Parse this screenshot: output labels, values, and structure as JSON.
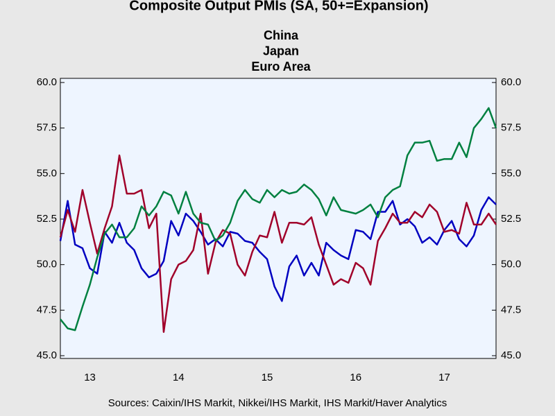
{
  "chart_data": {
    "type": "line",
    "title": "Composite Output PMIs (SA, 50+=Expansion)",
    "source": "Sources:  Caixin/IHS Markit, Nikkei/IHS Markit, IHS Markit/Haver Analytics",
    "x": [
      2013.167,
      2013.25,
      2013.333,
      2013.417,
      2013.5,
      2013.583,
      2013.667,
      2013.75,
      2013.833,
      2013.917,
      2014.0,
      2014.083,
      2014.167,
      2014.25,
      2014.333,
      2014.417,
      2014.5,
      2014.583,
      2014.667,
      2014.75,
      2014.833,
      2014.917,
      2015.0,
      2015.083,
      2015.167,
      2015.25,
      2015.333,
      2015.417,
      2015.5,
      2015.583,
      2015.667,
      2015.75,
      2015.833,
      2015.917,
      2016.0,
      2016.083,
      2016.167,
      2016.25,
      2016.333,
      2016.417,
      2016.5,
      2016.583,
      2016.667,
      2016.75,
      2016.833,
      2016.917,
      2017.0,
      2017.083,
      2017.167,
      2017.25,
      2017.333,
      2017.417,
      2017.5,
      2017.583,
      2017.667,
      2017.75,
      2017.833,
      2017.917,
      2018.0,
      2018.083
    ],
    "xlim": [
      2013.167,
      2018.083
    ],
    "xticks": [
      {
        "value": 2013.5,
        "label": "13"
      },
      {
        "value": 2014.5,
        "label": "14"
      },
      {
        "value": 2015.5,
        "label": "15"
      },
      {
        "value": 2016.5,
        "label": "16"
      },
      {
        "value": 2017.5,
        "label": "17"
      }
    ],
    "ylim": [
      45,
      60
    ],
    "yticks": [
      {
        "value": 45,
        "label": "45.0"
      },
      {
        "value": 47.5,
        "label": "47.5"
      },
      {
        "value": 50,
        "label": "50.0"
      },
      {
        "value": 52.5,
        "label": "52.5"
      },
      {
        "value": 55,
        "label": "55.0"
      },
      {
        "value": 57.5,
        "label": "57.5"
      },
      {
        "value": 60,
        "label": "60.0"
      }
    ],
    "y2lim": [
      45,
      60
    ],
    "y2ticks": [
      {
        "value": 45,
        "label": "45.0"
      },
      {
        "value": 47.5,
        "label": "47.5"
      },
      {
        "value": 50,
        "label": "50.0"
      },
      {
        "value": 52.5,
        "label": "52.5"
      },
      {
        "value": 55,
        "label": "55.0"
      },
      {
        "value": 57.5,
        "label": "57.5"
      },
      {
        "value": 60,
        "label": "60.0"
      }
    ],
    "series": [
      {
        "name": "China",
        "color": "#0000c0",
        "values": [
          51.3,
          53.5,
          51.1,
          50.9,
          49.8,
          49.5,
          51.8,
          51.2,
          52.3,
          51.2,
          50.8,
          49.8,
          49.3,
          49.5,
          50.2,
          52.4,
          51.6,
          52.8,
          52.4,
          51.8,
          51.1,
          51.4,
          51.0,
          51.8,
          51.7,
          51.3,
          51.2,
          50.7,
          50.3,
          48.8,
          48.0,
          49.9,
          50.5,
          49.4,
          50.1,
          49.4,
          51.2,
          50.8,
          50.5,
          50.3,
          51.9,
          51.8,
          51.4,
          52.9,
          52.9,
          53.5,
          52.2,
          52.5,
          52.1,
          51.2,
          51.5,
          51.1,
          51.9,
          52.4,
          51.4,
          51.0,
          51.6,
          53.0,
          53.7,
          53.3
        ]
      },
      {
        "name": "Japan",
        "color": "#a0002a",
        "values": [
          51.5,
          53.0,
          51.8,
          54.1,
          52.3,
          50.6,
          52.0,
          53.2,
          56.0,
          53.9,
          53.9,
          54.1,
          52.0,
          52.8,
          46.3,
          49.2,
          50.0,
          50.2,
          50.8,
          52.8,
          49.5,
          51.2,
          51.9,
          51.7,
          50.0,
          49.4,
          50.7,
          51.6,
          51.5,
          52.9,
          51.2,
          52.3,
          52.3,
          52.2,
          52.6,
          51.1,
          50.0,
          48.9,
          49.2,
          49.0,
          50.1,
          49.8,
          48.9,
          51.3,
          52.0,
          52.8,
          52.3,
          52.3,
          52.9,
          52.6,
          53.3,
          52.9,
          51.8,
          51.9,
          51.7,
          53.4,
          52.2,
          52.2,
          52.8,
          52.2
        ]
      },
      {
        "name": "Euro Area",
        "color": "#008040",
        "values": [
          47.0,
          46.5,
          46.4,
          47.7,
          48.9,
          50.4,
          51.7,
          52.2,
          51.5,
          51.5,
          52.0,
          53.2,
          52.7,
          53.2,
          54.0,
          53.8,
          52.8,
          54.0,
          52.8,
          52.3,
          52.2,
          51.3,
          51.6,
          52.3,
          53.5,
          54.1,
          53.6,
          53.4,
          54.1,
          53.7,
          54.1,
          53.9,
          54.0,
          54.4,
          54.1,
          53.6,
          52.7,
          53.7,
          53.0,
          52.9,
          52.8,
          53.0,
          53.3,
          52.6,
          53.7,
          54.1,
          54.3,
          56.0,
          56.7,
          56.7,
          56.8,
          55.7,
          55.8,
          55.8,
          56.7,
          55.9,
          57.5,
          58.0,
          58.6,
          57.5
        ]
      }
    ]
  }
}
